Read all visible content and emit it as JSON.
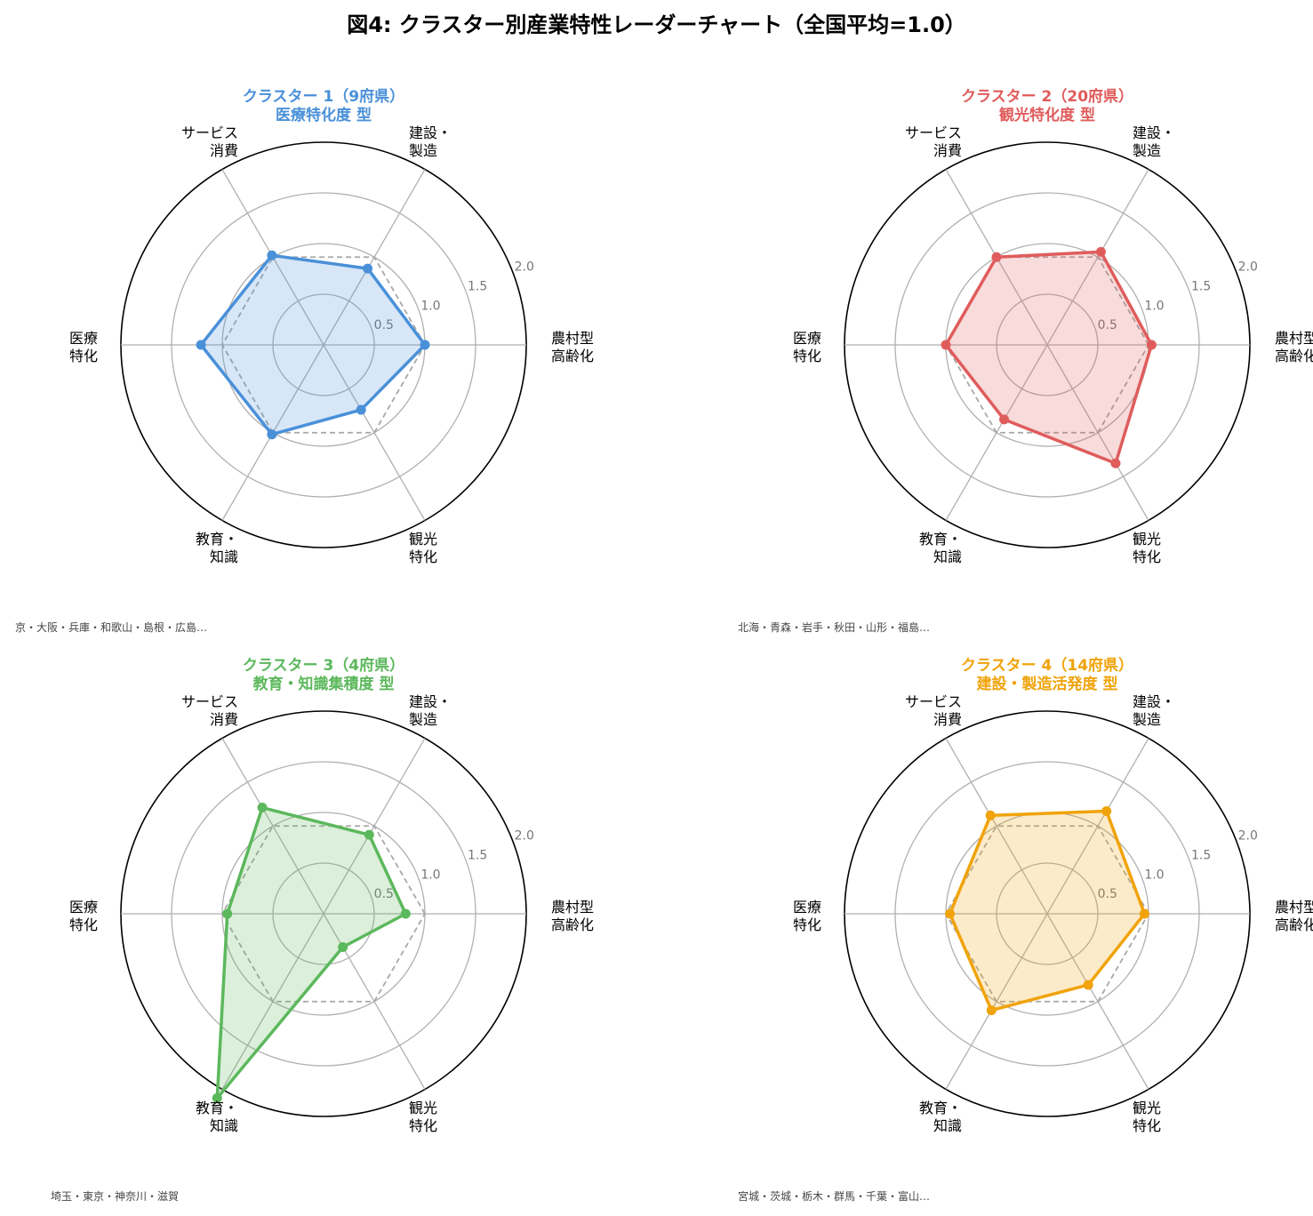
{
  "title": "図4: クラスター別産業特性レーダーチャート（全国平均=1.0）",
  "chart_data": [
    {
      "type": "radar",
      "title": "クラスター 1（9府県）",
      "subtitle": "医療特化度 型",
      "color": "#4a90d9",
      "axes": [
        [
          "農村型",
          "高齢化"
        ],
        [
          "建設・",
          "製造"
        ],
        [
          "サービス",
          "消費"
        ],
        [
          "医療",
          "特化"
        ],
        [
          "教育・",
          "知識"
        ],
        [
          "観光",
          "特化"
        ]
      ],
      "rticks": [
        "0.5",
        "1.0",
        "1.5",
        "2.0"
      ],
      "rlim": [
        0,
        2.0
      ],
      "baseline": 1.0,
      "values": [
        1.0,
        0.87,
        1.02,
        1.21,
        1.02,
        0.74
      ],
      "footnote": "京・大阪・兵庫・和歌山・島根・広島…"
    },
    {
      "type": "radar",
      "title": "クラスター 2（20府県）",
      "subtitle": "観光特化度 型",
      "color": "#e05c5c",
      "axes": [
        [
          "農村型",
          "高齢化"
        ],
        [
          "建設・",
          "製造"
        ],
        [
          "サービス",
          "消費"
        ],
        [
          "医療",
          "特化"
        ],
        [
          "教育・",
          "知識"
        ],
        [
          "観光",
          "特化"
        ]
      ],
      "rticks": [
        "0.5",
        "1.0",
        "1.5",
        "2.0"
      ],
      "rlim": [
        0,
        2.0
      ],
      "baseline": 1.0,
      "values": [
        1.03,
        1.06,
        1.0,
        1.0,
        0.85,
        1.35
      ],
      "footnote": "北海・青森・岩手・秋田・山形・福島…"
    },
    {
      "type": "radar",
      "title": "クラスター 3（4府県）",
      "subtitle": "教育・知識集積度 型",
      "color": "#5cb85c",
      "axes": [
        [
          "農村型",
          "高齢化"
        ],
        [
          "建設・",
          "製造"
        ],
        [
          "サービス",
          "消費"
        ],
        [
          "医療",
          "特化"
        ],
        [
          "教育・",
          "知識"
        ],
        [
          "観光",
          "特化"
        ]
      ],
      "rticks": [
        "0.5",
        "1.0",
        "1.5",
        "2.0"
      ],
      "rlim": [
        0,
        2.0
      ],
      "baseline": 1.0,
      "values": [
        0.81,
        0.9,
        1.21,
        0.95,
        2.1,
        0.38
      ],
      "footnote": "埼玉・東京・神奈川・滋賀"
    },
    {
      "type": "radar",
      "title": "クラスター 4（14府県）",
      "subtitle": "建設・製造活発度 型",
      "color": "#f0a30a",
      "axes": [
        [
          "農村型",
          "高齢化"
        ],
        [
          "建設・",
          "製造"
        ],
        [
          "サービス",
          "消費"
        ],
        [
          "医療",
          "特化"
        ],
        [
          "教育・",
          "知識"
        ],
        [
          "観光",
          "特化"
        ]
      ],
      "rticks": [
        "0.5",
        "1.0",
        "1.5",
        "2.0"
      ],
      "rlim": [
        0,
        2.0
      ],
      "baseline": 1.0,
      "values": [
        0.96,
        1.17,
        1.12,
        0.96,
        1.1,
        0.81
      ],
      "footnote": "宮城・茨城・栃木・群馬・千葉・富山…"
    }
  ]
}
